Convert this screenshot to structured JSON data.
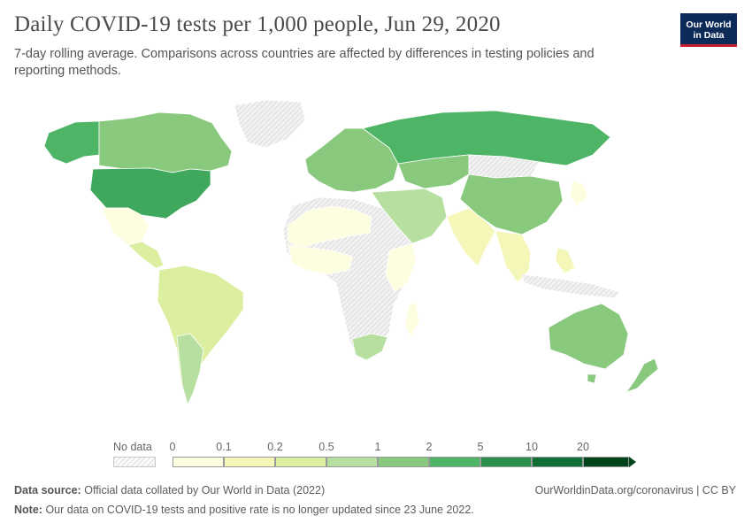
{
  "header": {
    "title": "Daily COVID-19 tests per 1,000 people, Jun 29, 2020",
    "subtitle": "7-day rolling average. Comparisons across countries are affected by differences in testing policies and reporting methods."
  },
  "logo": {
    "line1": "Our World",
    "line2": "in Data",
    "bg_color": "#0b2a57",
    "accent_color": "#c8202f"
  },
  "legend": {
    "no_data_label": "No data",
    "tick_labels": [
      "0",
      "0.1",
      "0.2",
      "0.5",
      "1",
      "2",
      "5",
      "10",
      "20"
    ],
    "bins": [
      {
        "from": "0",
        "to": "0.1",
        "color": "#fdfde0"
      },
      {
        "from": "0.1",
        "to": "0.2",
        "color": "#f4f7b7"
      },
      {
        "from": "0.2",
        "to": "0.5",
        "color": "#dcee9f"
      },
      {
        "from": "0.5",
        "to": "1",
        "color": "#b7e0a0"
      },
      {
        "from": "1",
        "to": "2",
        "color": "#88c97d"
      },
      {
        "from": "2",
        "to": "5",
        "color": "#4eb466"
      },
      {
        "from": "5",
        "to": "10",
        "color": "#2a8f4a"
      },
      {
        "from": "10",
        "to": "20",
        "color": "#0f6f35"
      },
      {
        "from": "20",
        "to": "",
        "color": "#00441b"
      }
    ]
  },
  "map_colors": {
    "no_data": "#e9e9e9",
    "north_america": "#88c97d",
    "usa": "#3fa85c",
    "alaska": "#4eb466",
    "mexico": "#fdfde0",
    "greenland": "#e9e9e9",
    "south_america": "#dcee9f",
    "chile": "#b7e0a0",
    "europe": "#88c97d",
    "russia": "#4eb466",
    "kazakhstan": "#88c97d",
    "china": "#88c97d",
    "india": "#f4f7b7",
    "middle_east": "#b7e0a0",
    "africa": "#fdfde0",
    "south_africa": "#b7e0a0",
    "australia": "#88c97d",
    "new_zealand": "#88c97d"
  },
  "footer": {
    "source_label": "Data source:",
    "source_text": "Official data collated by Our World in Data (2022)",
    "note_label": "Note:",
    "note_text": "Our data on COVID-19 tests and positive rate is no longer updated since 23 June 2022.",
    "url_text": "OurWorldinData.org/coronavirus | CC BY"
  }
}
